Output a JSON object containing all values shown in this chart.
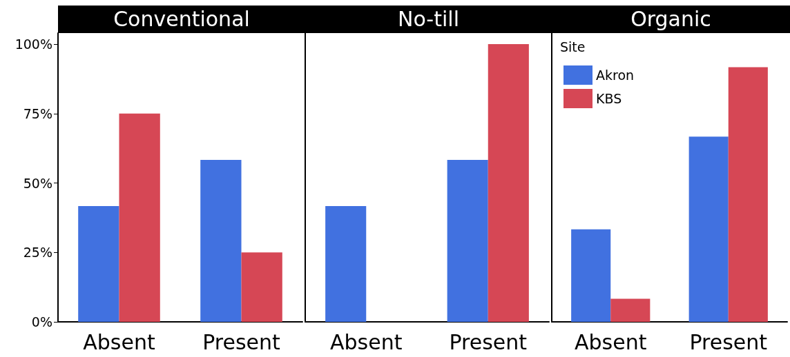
{
  "chart_data": [
    {
      "type": "bar",
      "title": "Conventional",
      "categories": [
        "Absent",
        "Present"
      ],
      "ylim": [
        0,
        104
      ],
      "yticks": [
        {
          "value": 0,
          "label": "0%"
        },
        {
          "value": 25,
          "label": "25%"
        },
        {
          "value": 50,
          "label": "50%"
        },
        {
          "value": 75,
          "label": "75%"
        },
        {
          "value": 100,
          "label": "100%"
        }
      ],
      "series": [
        {
          "color": "#4171e0",
          "values": [
            41.7,
            58.3
          ]
        },
        {
          "color": "#d64755",
          "values": [
            75,
            25
          ]
        }
      ]
    },
    {
      "type": "bar",
      "title": "No-till",
      "categories": [
        "Absent",
        "Present"
      ],
      "ylim": [
        0,
        104
      ],
      "tick_labels": "x",
      "series": [
        {
          "color": "#4171e0",
          "values": [
            41.7,
            58.3
          ]
        },
        {
          "color": "#d64755",
          "values": [
            0,
            100
          ]
        }
      ]
    },
    {
      "type": "bar",
      "title": "Organic",
      "categories": [
        "Absent",
        "Present"
      ],
      "ylim": [
        0,
        104
      ],
      "tick_labels": "x",
      "legend": "top left",
      "legend_title": "Site",
      "series": [
        {
          "name": "Akron",
          "color": "#4171e0",
          "values": [
            33.3,
            66.7
          ]
        },
        {
          "name": "KBS",
          "color": "#d64755",
          "values": [
            8.3,
            91.7
          ]
        }
      ]
    }
  ]
}
